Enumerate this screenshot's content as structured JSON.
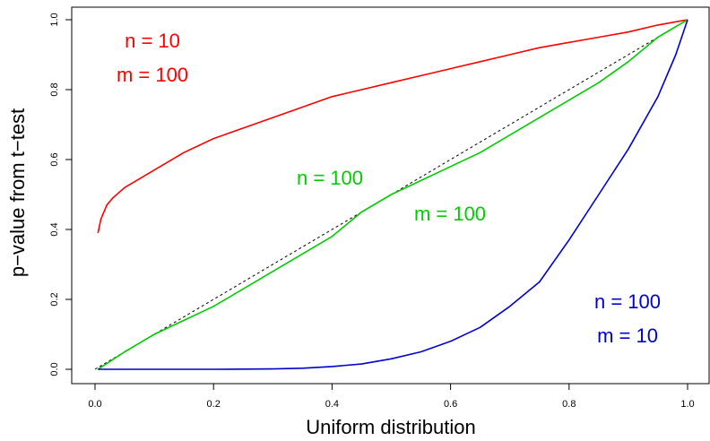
{
  "chart_data": {
    "type": "line",
    "title": "",
    "xlabel": "Uniform distribution",
    "ylabel": "p−value from t−test",
    "xlim": [
      0,
      1
    ],
    "ylim": [
      0,
      1
    ],
    "x_ticks": [
      "0.0",
      "0.2",
      "0.4",
      "0.6",
      "0.8",
      "1.0"
    ],
    "y_ticks": [
      "0.0",
      "0.2",
      "0.4",
      "0.6",
      "0.8",
      "1.0"
    ],
    "grid": false,
    "legend": "none",
    "reference_line": {
      "x": [
        0,
        1
      ],
      "y": [
        0,
        1
      ],
      "style": "dashed",
      "color": "#000000"
    },
    "series": [
      {
        "color": "#ff0000",
        "x": [
          0.005,
          0.01,
          0.02,
          0.03,
          0.05,
          0.07,
          0.1,
          0.15,
          0.2,
          0.25,
          0.3,
          0.35,
          0.4,
          0.45,
          0.5,
          0.55,
          0.6,
          0.65,
          0.7,
          0.75,
          0.8,
          0.85,
          0.9,
          0.95,
          1.0
        ],
        "y": [
          0.39,
          0.43,
          0.47,
          0.49,
          0.52,
          0.54,
          0.57,
          0.62,
          0.66,
          0.69,
          0.72,
          0.75,
          0.78,
          0.8,
          0.82,
          0.84,
          0.86,
          0.88,
          0.9,
          0.92,
          0.935,
          0.95,
          0.965,
          0.985,
          1.0
        ]
      },
      {
        "color": "#00cc00",
        "x": [
          0.005,
          0.05,
          0.1,
          0.15,
          0.2,
          0.25,
          0.3,
          0.35,
          0.4,
          0.45,
          0.5,
          0.55,
          0.6,
          0.65,
          0.7,
          0.75,
          0.8,
          0.85,
          0.9,
          0.95,
          1.0
        ],
        "y": [
          0.0,
          0.05,
          0.1,
          0.14,
          0.18,
          0.23,
          0.28,
          0.33,
          0.38,
          0.45,
          0.5,
          0.54,
          0.58,
          0.62,
          0.67,
          0.72,
          0.77,
          0.82,
          0.88,
          0.95,
          1.0
        ]
      },
      {
        "color": "#0000cc",
        "x": [
          0.005,
          0.1,
          0.2,
          0.3,
          0.35,
          0.4,
          0.45,
          0.5,
          0.55,
          0.6,
          0.65,
          0.7,
          0.75,
          0.8,
          0.85,
          0.9,
          0.95,
          0.98,
          1.0
        ],
        "y": [
          0.0,
          0.0,
          0.0,
          0.001,
          0.003,
          0.008,
          0.015,
          0.03,
          0.05,
          0.08,
          0.12,
          0.18,
          0.25,
          0.37,
          0.5,
          0.63,
          0.78,
          0.9,
          1.0
        ]
      }
    ],
    "annotations": [
      {
        "lines": [
          "n = 10",
          "m = 100"
        ],
        "color": "#ff0000"
      },
      {
        "lines": [
          "n = 100",
          "m = 100"
        ],
        "color": "#00cc00"
      },
      {
        "lines": [
          "n = 100",
          "m = 10"
        ],
        "color": "#0000cc"
      }
    ]
  }
}
